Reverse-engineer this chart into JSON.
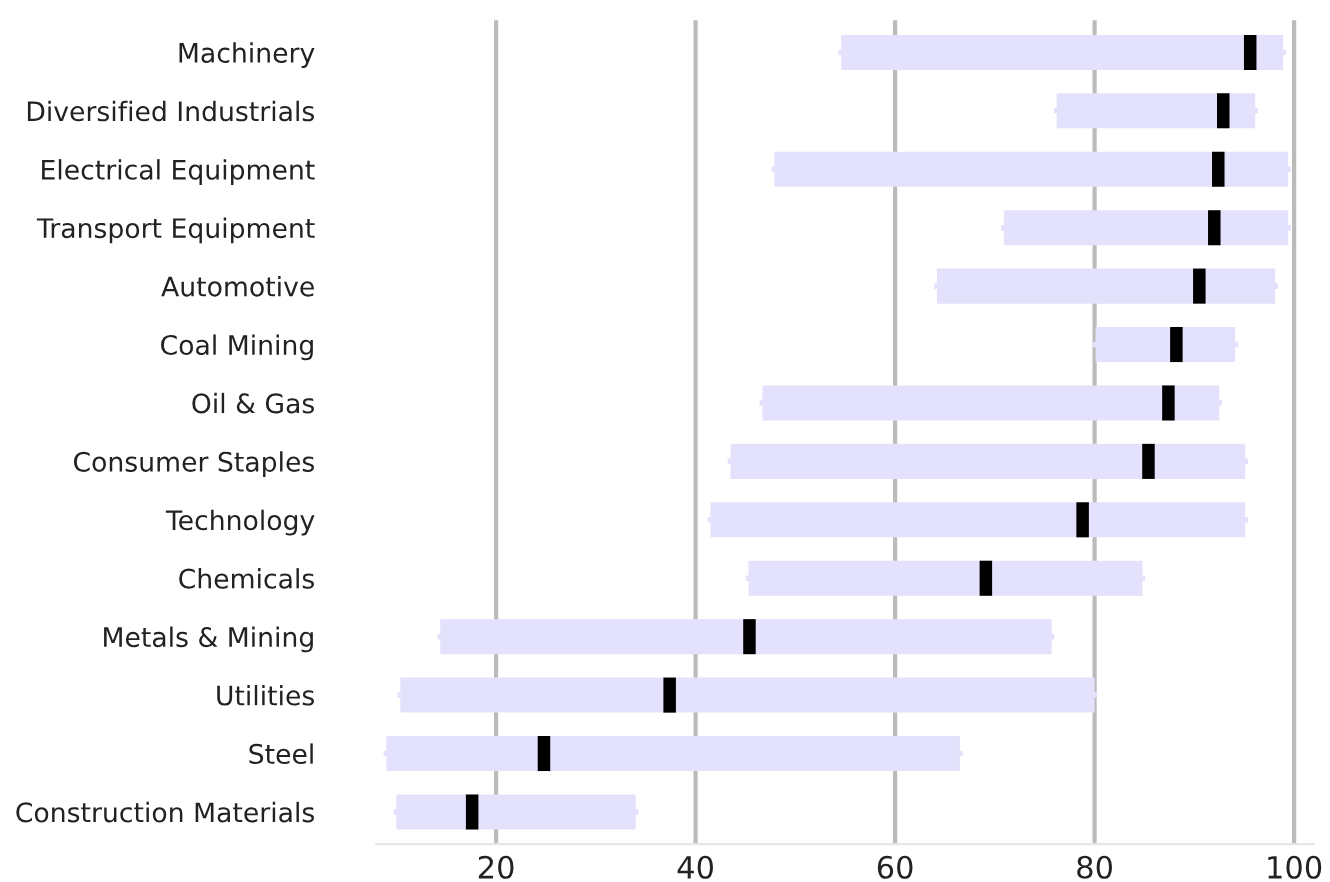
{
  "chart_data": {
    "type": "box",
    "orientation": "horizontal",
    "categories": [
      "Machinery",
      "Diversified Industrials",
      "Electrical Equipment",
      "Transport Equipment",
      "Automotive",
      "Coal Mining",
      "Oil & Gas",
      "Consumer Staples",
      "Technology",
      "Chemicals",
      "Metals & Mining",
      "Utilities",
      "Steel",
      "Construction Materials"
    ],
    "series": [
      {
        "color": "#e3e1fc",
        "boxes": [
          {
            "low": 54.6,
            "q1": 54.6,
            "median": 95.6,
            "q3": 98.9,
            "high": 98.9
          },
          {
            "low": 76.2,
            "q1": 76.2,
            "median": 92.9,
            "q3": 96.1,
            "high": 96.1
          },
          {
            "low": 47.9,
            "q1": 47.9,
            "median": 92.4,
            "q3": 99.4,
            "high": 99.4
          },
          {
            "low": 70.9,
            "q1": 70.9,
            "median": 92.0,
            "q3": 99.4,
            "high": 99.4
          },
          {
            "low": 64.2,
            "q1": 64.2,
            "median": 90.5,
            "q3": 98.1,
            "high": 98.1
          },
          {
            "low": 80.1,
            "q1": 80.1,
            "median": 88.2,
            "q3": 94.1,
            "high": 94.1
          },
          {
            "low": 46.7,
            "q1": 46.7,
            "median": 87.4,
            "q3": 92.5,
            "high": 92.5
          },
          {
            "low": 43.5,
            "q1": 43.5,
            "median": 85.4,
            "q3": 95.1,
            "high": 95.1
          },
          {
            "low": 41.5,
            "q1": 41.5,
            "median": 78.8,
            "q3": 95.1,
            "high": 95.1
          },
          {
            "low": 45.3,
            "q1": 45.3,
            "median": 69.1,
            "q3": 84.8,
            "high": 84.8
          },
          {
            "low": 14.4,
            "q1": 14.4,
            "median": 45.4,
            "q3": 75.7,
            "high": 75.7
          },
          {
            "low": 10.4,
            "q1": 10.4,
            "median": 37.4,
            "q3": 80.0,
            "high": 80.0
          },
          {
            "low": 9.0,
            "q1": 9.0,
            "median": 24.8,
            "q3": 66.5,
            "high": 66.5
          },
          {
            "low": 10.0,
            "q1": 10.0,
            "median": 17.6,
            "q3": 34.0,
            "high": 34.0
          }
        ]
      }
    ],
    "xlim": [
      8,
      102
    ],
    "xticks": [
      20,
      40,
      60,
      80,
      100
    ],
    "grid": "x"
  }
}
